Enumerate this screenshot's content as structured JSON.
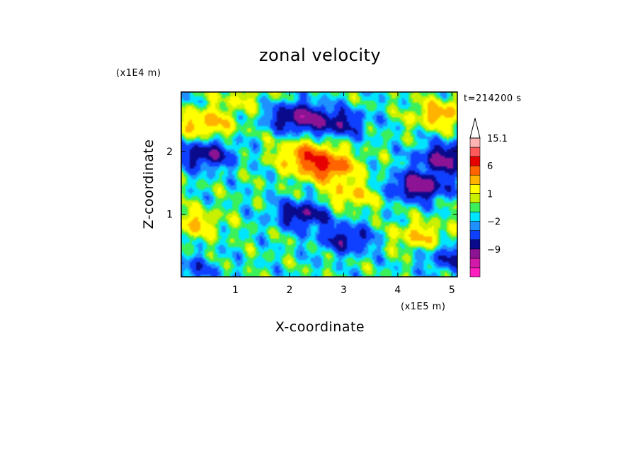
{
  "chart_data": {
    "type": "heatmap",
    "title": "zonal velocity",
    "xlabel": "X-coordinate",
    "ylabel": "Z-coordinate",
    "x_unit": "(x1E5 m)",
    "y_unit": "(x1E4 m)",
    "time_label": "t=214200 s",
    "xlim": [
      0,
      5.1
    ],
    "ylim": [
      0,
      2.95
    ],
    "xticks": [
      "1",
      "2",
      "3",
      "4",
      "5"
    ],
    "yticks": [
      "1",
      "2"
    ],
    "colorbar": {
      "tick_labels": [
        "15.1",
        "6",
        "1",
        "−2",
        "−9"
      ],
      "levels": [
        -15,
        -12,
        -9,
        -6,
        -4,
        -2,
        -1,
        0,
        1,
        2,
        4,
        6,
        9,
        12,
        15.1
      ],
      "colors": [
        "#ff1fbf",
        "#d21aa8",
        "#8c1494",
        "#0a0a8c",
        "#1040ff",
        "#1e90ff",
        "#00e5ff",
        "#3cf05a",
        "#c8f000",
        "#ffff00",
        "#ffb300",
        "#ff6400",
        "#e60000",
        "#ff5a5a",
        "#ffb4b4"
      ]
    },
    "field_features": [
      {
        "x": 0.45,
        "z": 2.45,
        "value": 5
      },
      {
        "x": 1.1,
        "z": 2.85,
        "value": 2
      },
      {
        "x": 2.15,
        "z": 2.55,
        "value": -7
      },
      {
        "x": 2.9,
        "z": 2.45,
        "value": -5
      },
      {
        "x": 0.45,
        "z": 1.95,
        "value": -6
      },
      {
        "x": 2.3,
        "z": 1.95,
        "value": 6
      },
      {
        "x": 2.7,
        "z": 1.75,
        "value": 8
      },
      {
        "x": 4.4,
        "z": 1.45,
        "value": -8
      },
      {
        "x": 4.9,
        "z": 1.9,
        "value": -7
      },
      {
        "x": 4.8,
        "z": 2.6,
        "value": 5
      },
      {
        "x": 3.1,
        "z": 1.3,
        "value": 4
      },
      {
        "x": 2.25,
        "z": 1.0,
        "value": -6
      },
      {
        "x": 3.05,
        "z": 0.6,
        "value": -5
      },
      {
        "x": 4.4,
        "z": 0.65,
        "value": 4
      },
      {
        "x": 0.2,
        "z": 0.85,
        "value": 4
      },
      {
        "x": 5.0,
        "z": 0.3,
        "value": -4
      },
      {
        "x": 0.15,
        "z": 0.1,
        "value": -3
      }
    ]
  }
}
